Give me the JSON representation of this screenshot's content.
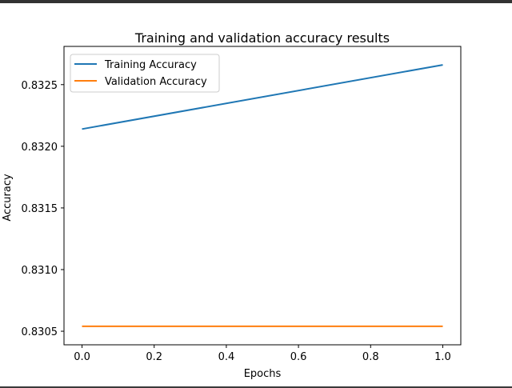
{
  "chart_data": {
    "type": "line",
    "title": "Training and validation accuracy results",
    "xlabel": "Epochs",
    "ylabel": "Accuracy",
    "x": [
      0.0,
      1.0
    ],
    "xlim": [
      -0.05,
      1.05
    ],
    "ylim": [
      0.83039,
      0.83281
    ],
    "xticks": [
      0.0,
      0.2,
      0.4,
      0.6,
      0.8,
      1.0
    ],
    "xtick_labels": [
      "0.0",
      "0.2",
      "0.4",
      "0.6",
      "0.8",
      "1.0"
    ],
    "yticks": [
      0.8305,
      0.831,
      0.8315,
      0.832,
      0.8325
    ],
    "ytick_labels": [
      "0.8305",
      "0.8310",
      "0.8315",
      "0.8320",
      "0.8325"
    ],
    "grid": false,
    "legend_position": "top-left",
    "series": [
      {
        "name": "Training Accuracy",
        "color": "#1f77b4",
        "values": [
          0.83214,
          0.83266
        ]
      },
      {
        "name": "Validation Accuracy",
        "color": "#ff7f0e",
        "values": [
          0.83054,
          0.83054
        ]
      }
    ]
  }
}
